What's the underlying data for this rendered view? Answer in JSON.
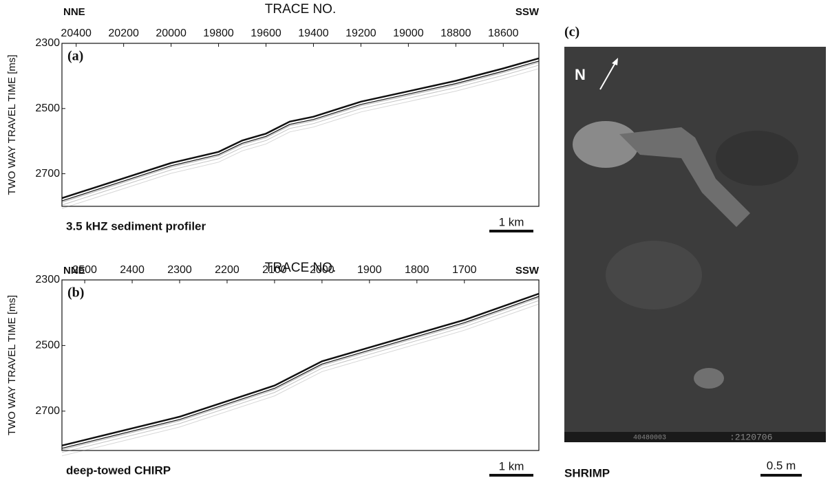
{
  "chart_data": [
    {
      "type": "line",
      "panel": "(a)",
      "left_label": "NNE",
      "right_label": "SSW",
      "xlabel": "TRACE NO.",
      "ylabel": "TWO WAY TRAVEL TIME [ms]",
      "caption": "3.5 kHZ sediment profiler",
      "scale_label": "1 km",
      "y_inverted": true,
      "xlim": [
        20460,
        18450
      ],
      "ylim": [
        2300,
        2800
      ],
      "xticks": [
        20400,
        20200,
        20000,
        19800,
        19600,
        19400,
        19200,
        19000,
        18800,
        18600
      ],
      "yticks": [
        2300,
        2500,
        2700
      ],
      "x": [
        20460,
        20000,
        19800,
        19700,
        19600,
        19500,
        19400,
        19200,
        19000,
        18800,
        18600,
        18450
      ],
      "series": [
        {
          "color": "#111111",
          "values": [
            2775,
            2667,
            2633,
            2598,
            2577,
            2540,
            2525,
            2479,
            2447,
            2415,
            2377,
            2346
          ]
        }
      ]
    },
    {
      "type": "line",
      "panel": "(b)",
      "left_label": "NNE",
      "right_label": "SSW",
      "xlabel": "TRACE NO.",
      "ylabel": "TWO WAY TRAVEL TIME [ms]",
      "caption": "deep-towed CHIRP",
      "scale_label": "1 km",
      "y_inverted": true,
      "xlim": [
        2548,
        1543
      ],
      "ylim": [
        2300,
        2820
      ],
      "xticks": [
        2500,
        2400,
        2300,
        2200,
        2100,
        2000,
        1900,
        1800,
        1700
      ],
      "yticks": [
        2300,
        2500,
        2700
      ],
      "x": [
        2548,
        2300,
        2100,
        2000,
        1900,
        1800,
        1700,
        1543
      ],
      "series": [
        {
          "color": "#111111",
          "values": [
            2805,
            2717,
            2622,
            2548,
            2506,
            2464,
            2422,
            2342
          ]
        }
      ]
    }
  ],
  "photo": {
    "panel": "(c)",
    "north": "N",
    "caption": "SHRIMP",
    "scale_label": "0.5 m",
    "stamp_left": "40480003",
    "stamp_right": ":2120706"
  }
}
